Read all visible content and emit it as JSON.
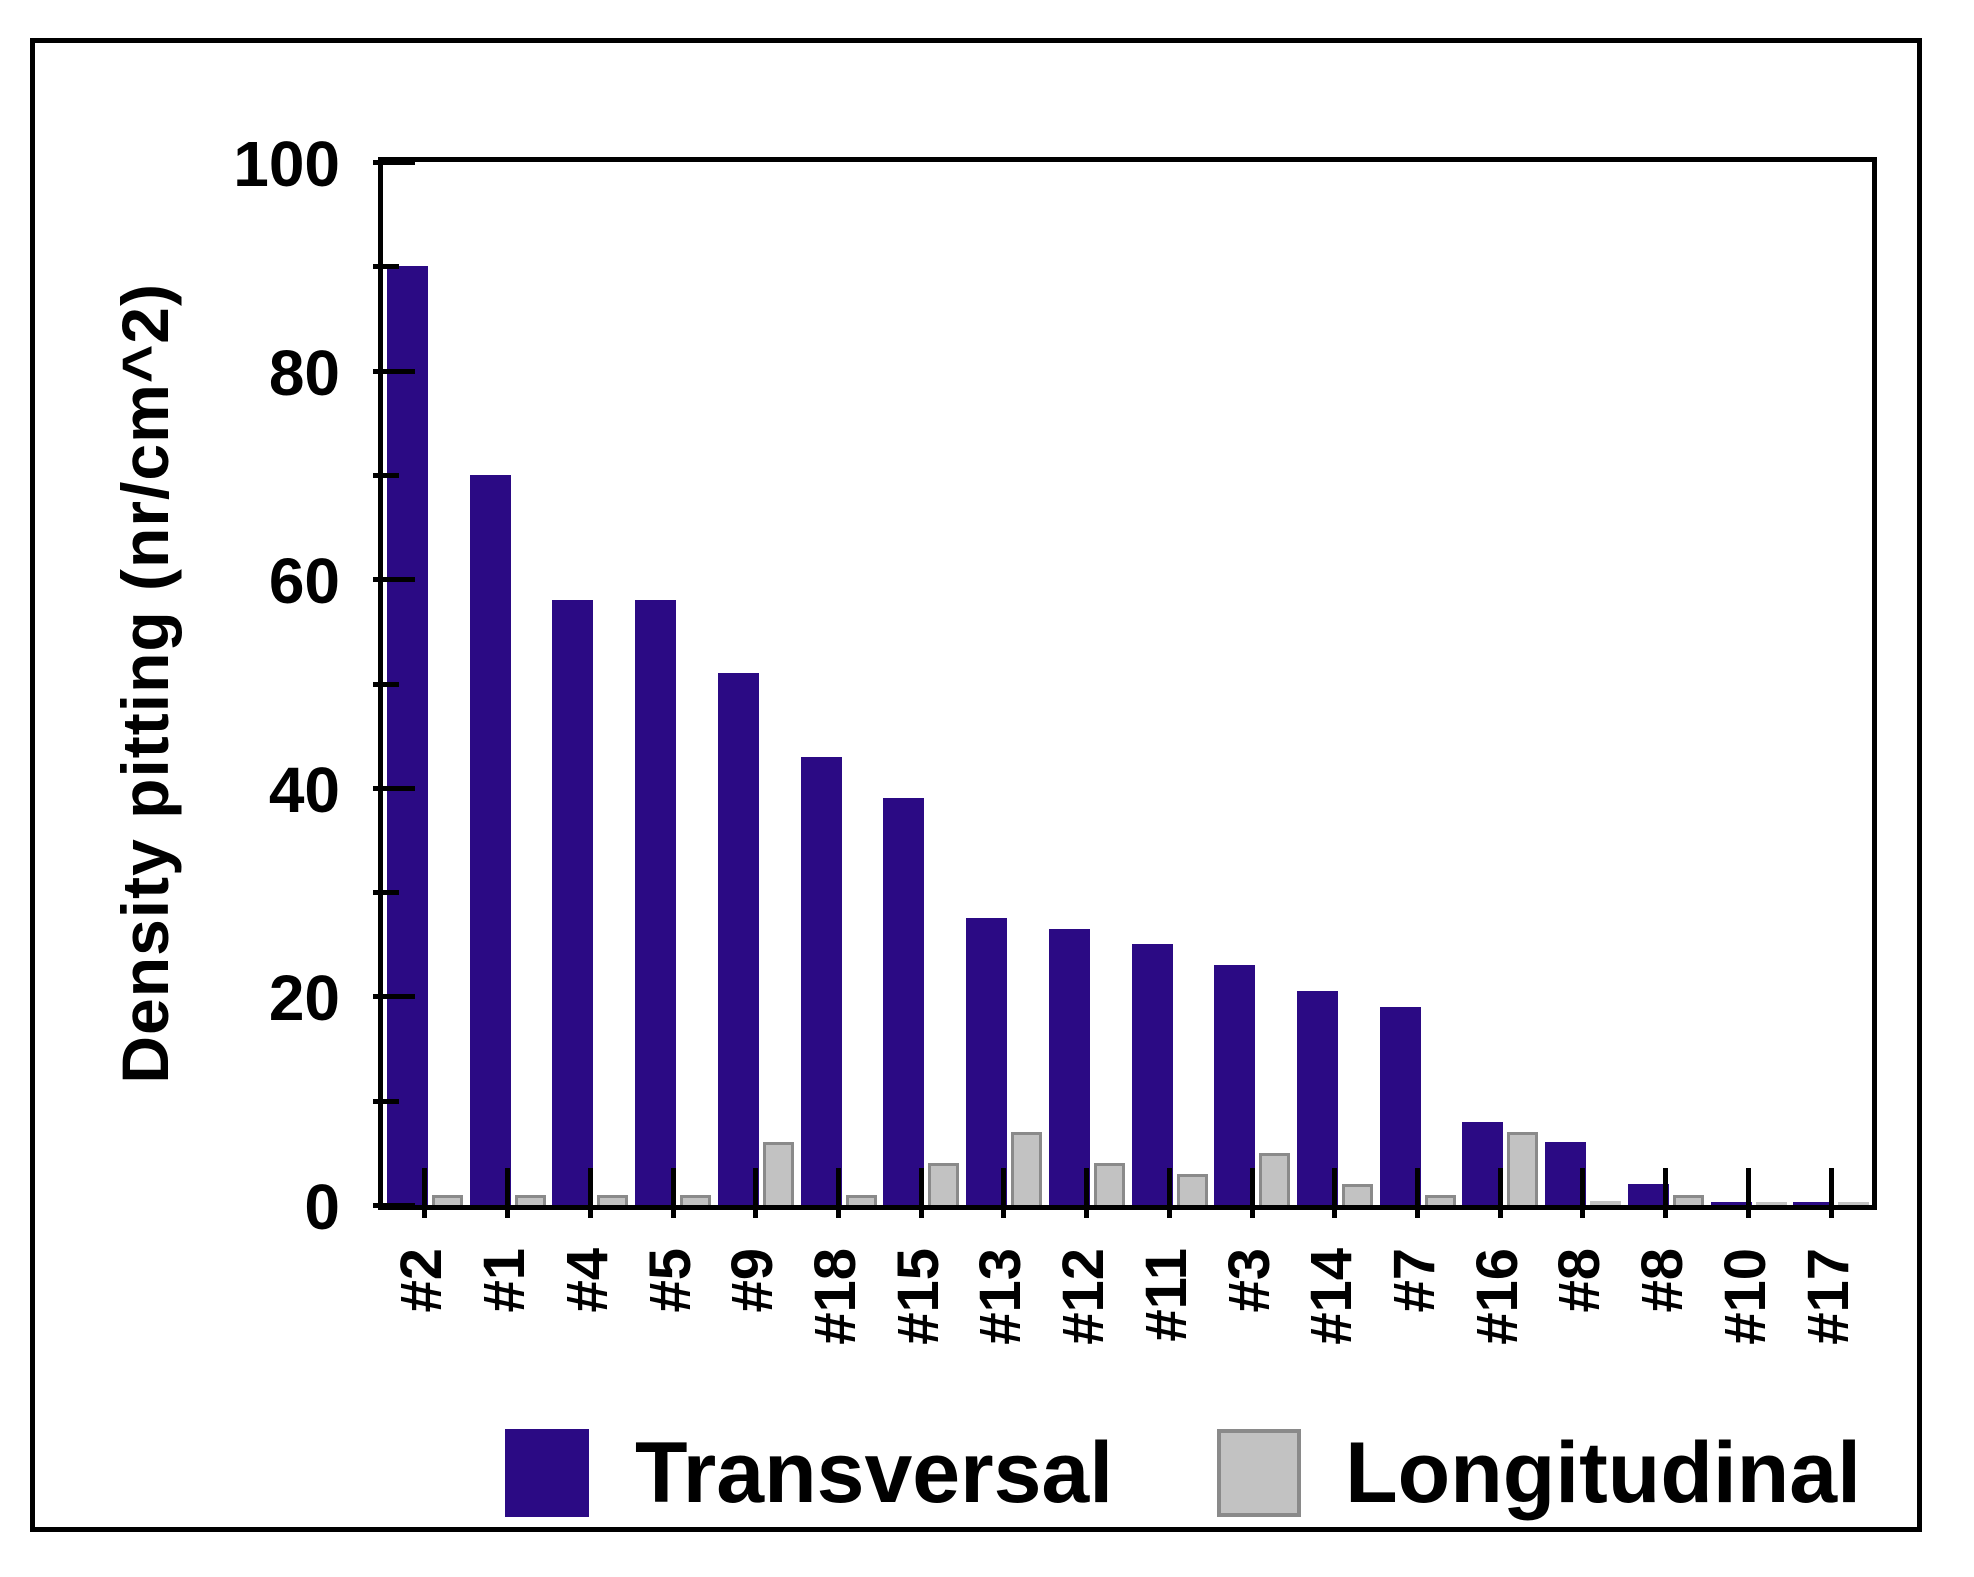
{
  "figure": {
    "background": "#ffffff",
    "frame_color": "#000000"
  },
  "chart_data": {
    "type": "bar",
    "title": "",
    "xlabel": "",
    "ylabel": "Density pitting (nr/cm^2)",
    "categories": [
      "#2",
      "#1",
      "#4",
      "#5",
      "#9",
      "#18",
      "#15",
      "#13",
      "#12",
      "#11",
      "#3",
      "#14",
      "#7",
      "#16",
      "#8",
      "#8",
      "#10",
      "#17"
    ],
    "series": [
      {
        "name": "Transversal",
        "color": "#2B0A84",
        "values": [
          90,
          70,
          58,
          58,
          51,
          43,
          39,
          27.5,
          26.5,
          25,
          23,
          20.5,
          19,
          8,
          6,
          2,
          0.3,
          0.3
        ]
      },
      {
        "name": "Longitudinal",
        "color": "#C2C2C2",
        "border_color": "#8A8A8A",
        "values": [
          1,
          1,
          1,
          1,
          6,
          1,
          4,
          7,
          4,
          3,
          5,
          2,
          1,
          7,
          0.4,
          1,
          0.3,
          0.3
        ]
      }
    ],
    "ylim": [
      0,
      100
    ],
    "ytick_major": [
      0,
      20,
      40,
      60,
      80,
      100
    ],
    "ytick_minor": [
      10,
      30,
      50,
      70,
      90
    ],
    "grid": false,
    "legend_position": "bottom"
  }
}
